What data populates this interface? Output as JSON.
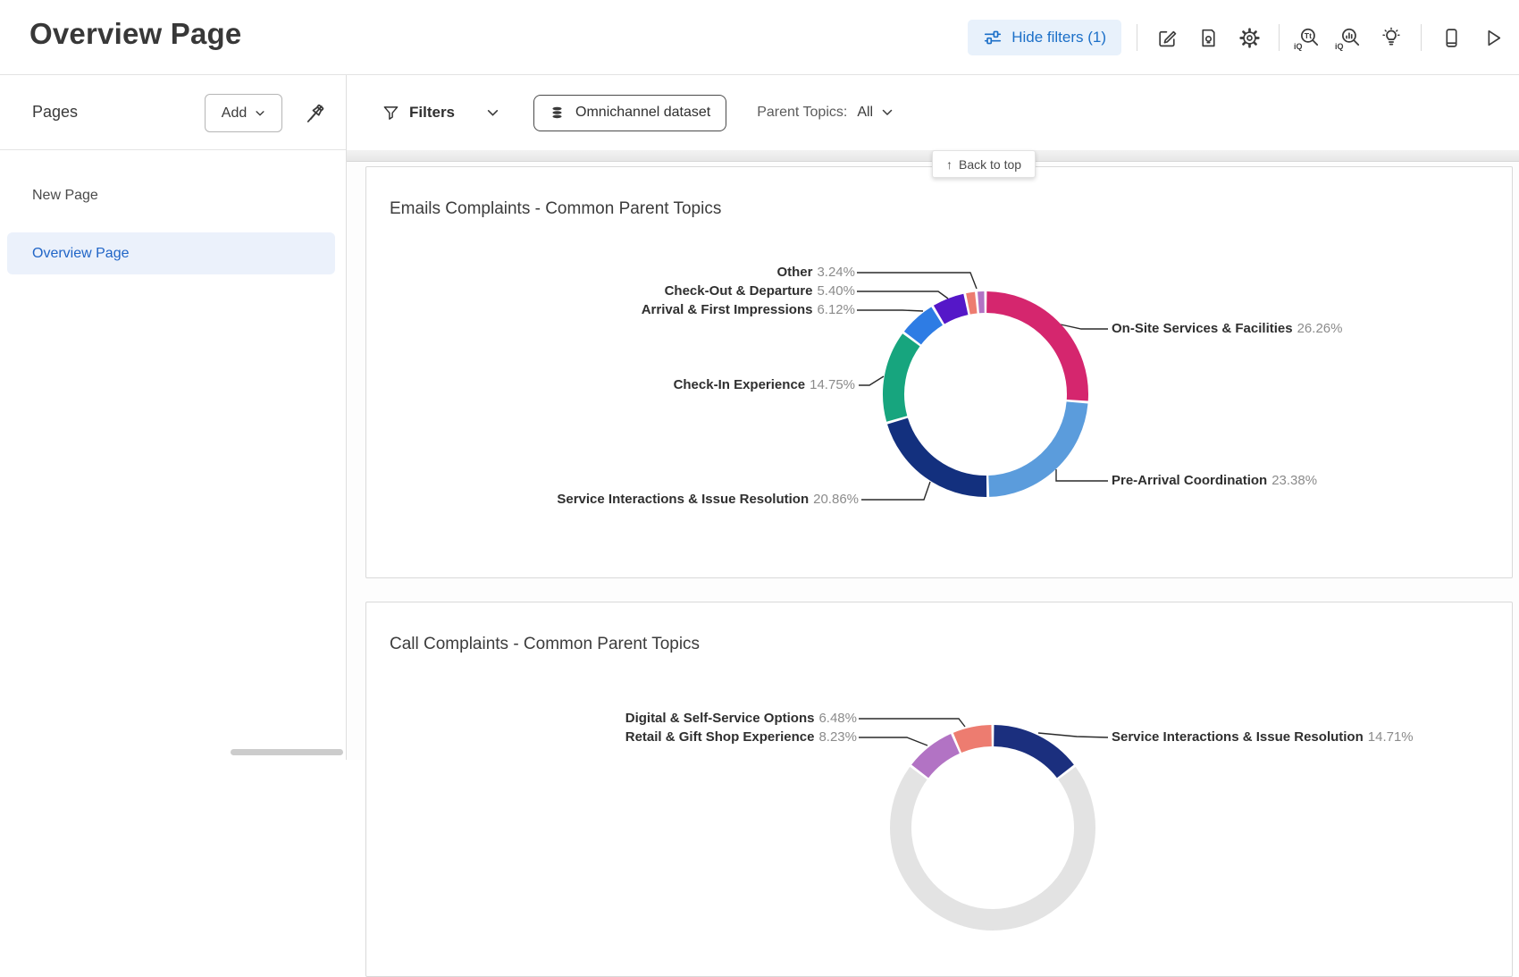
{
  "header": {
    "title": "Overview Page",
    "hide_filters_label": "Hide filters (1)"
  },
  "sidebar": {
    "title": "Pages",
    "add_label": "Add",
    "items": [
      {
        "label": "New Page",
        "selected": false
      },
      {
        "label": "Overview Page",
        "selected": true
      }
    ]
  },
  "filter_bar": {
    "filters_label": "Filters",
    "dataset_label": "Omnichannel dataset",
    "parent_topics_label": "Parent Topics:",
    "parent_topics_value": "All"
  },
  "back_to_top": {
    "arrow_icon": "↑",
    "label": "Back to top"
  },
  "charts": [
    {
      "title": "Emails Complaints - Common Parent Topics",
      "labels": [
        {
          "name": "Other",
          "pct": "3.24%"
        },
        {
          "name": "Check-Out & Departure",
          "pct": "5.40%"
        },
        {
          "name": "Arrival & First Impressions",
          "pct": "6.12%"
        },
        {
          "name": "Check-In Experience",
          "pct": "14.75%"
        },
        {
          "name": "Service Interactions & Issue Resolution",
          "pct": "20.86%"
        },
        {
          "name": "On-Site Services & Facilities",
          "pct": "26.26%"
        },
        {
          "name": "Pre-Arrival Coordination",
          "pct": "23.38%"
        }
      ]
    },
    {
      "title": "Call Complaints - Common Parent Topics",
      "labels": [
        {
          "name": "Digital & Self-Service Options",
          "pct": "6.48%"
        },
        {
          "name": "Retail & Gift Shop Experience",
          "pct": "8.23%"
        },
        {
          "name": "Service Interactions & Issue Resolution",
          "pct": "14.71%"
        }
      ]
    }
  ],
  "chart_data": [
    {
      "type": "pie",
      "subtype": "donut",
      "title": "Emails Complaints - Common Parent Topics",
      "categories": [
        "On-Site Services & Facilities",
        "Pre-Arrival Coordination",
        "Service Interactions & Issue Resolution",
        "Check-In Experience",
        "Arrival & First Impressions",
        "Check-Out & Departure",
        "Other"
      ],
      "values": [
        26.26,
        23.38,
        20.86,
        14.75,
        6.12,
        5.4,
        3.24
      ],
      "unit": "%",
      "legend": "none",
      "labels_on_chart": true,
      "start_deg": -11.7,
      "note": "Other (3.24%) is rendered as two small adjacent slices (coral + orchid) at the top of the ring",
      "slices": [
        {
          "label": "Other (sub-slice a)",
          "value": 1.8,
          "color": "#ED7C70"
        },
        {
          "label": "Other (sub-slice b)",
          "value": 1.44,
          "color": "#B273C4"
        },
        {
          "label": "On-Site Services & Facilities",
          "value": 26.26,
          "color": "#D5266E"
        },
        {
          "label": "Pre-Arrival Coordination",
          "value": 23.38,
          "color": "#5B9CDC"
        },
        {
          "label": "Service Interactions & Issue Resolution",
          "value": 20.86,
          "color": "#13307E"
        },
        {
          "label": "Check-In Experience",
          "value": 14.75,
          "color": "#17A57E"
        },
        {
          "label": "Arrival & First Impressions",
          "value": 6.12,
          "color": "#2E7CE4"
        },
        {
          "label": "Check-Out & Departure",
          "value": 5.4,
          "color": "#5517C8"
        }
      ]
    },
    {
      "type": "pie",
      "subtype": "donut",
      "title": "Call Complaints - Common Parent Topics",
      "categories": [
        "Service Interactions & Issue Resolution",
        "Retail & Gift Shop Experience",
        "Digital & Self-Service Options"
      ],
      "values": [
        14.71,
        8.23,
        6.48
      ],
      "unit": "%",
      "legend": "none",
      "labels_on_chart": true,
      "start_deg": -52.96,
      "note": "Chart is cut off by the bottom of the viewport; only the top of the ring and three labels are visible",
      "slices": [
        {
          "label": "Retail & Gift Shop Experience",
          "value": 8.23,
          "color": "#B273C4"
        },
        {
          "label": "Digital & Self-Service Options",
          "value": 6.48,
          "color": "#ED7C70"
        },
        {
          "label": "Service Interactions & Issue Resolution",
          "value": 14.71,
          "color": "#1B2F7E"
        },
        {
          "label": "(below fold, not visible)",
          "value": 70.58,
          "color": "#E3E3E3"
        }
      ]
    }
  ]
}
